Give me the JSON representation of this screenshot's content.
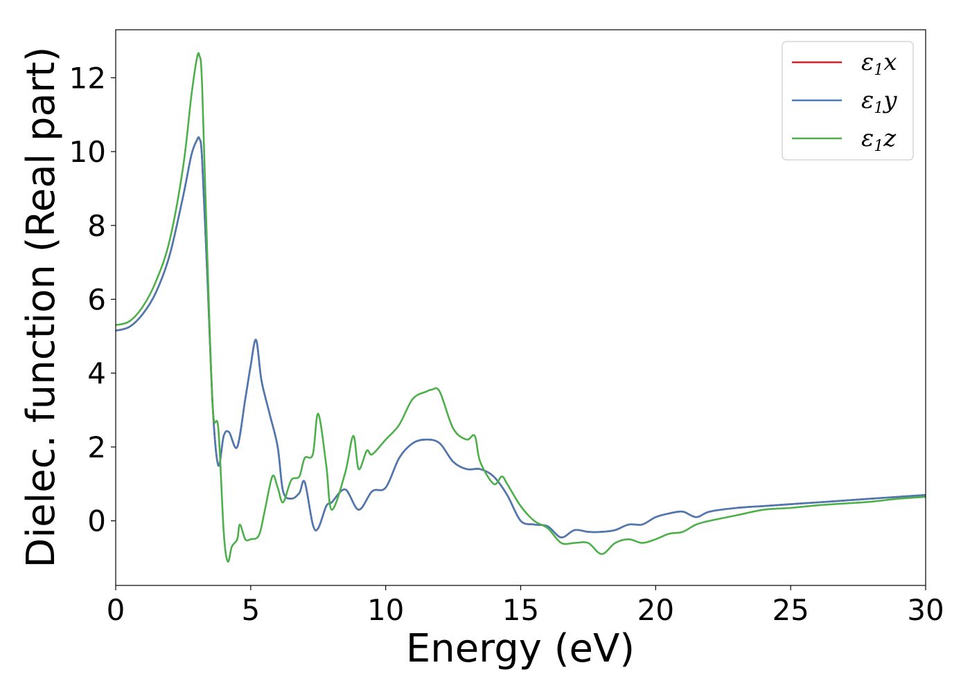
{
  "chart_data": {
    "type": "line",
    "title": "",
    "xlabel": "Energy (eV)",
    "ylabel": "Dielec. function (Real part)",
    "xlim": [
      0,
      30
    ],
    "ylim": [
      -1.75,
      13.3
    ],
    "xticks": [
      "0",
      "5",
      "10",
      "15",
      "20",
      "25",
      "30"
    ],
    "yticks": [
      "0",
      "2",
      "4",
      "6",
      "8",
      "10",
      "12"
    ],
    "grid": false,
    "legend_position": "top-right",
    "series": [
      {
        "name": "ε1x",
        "legend_base": "ε",
        "legend_sub": "1",
        "legend_var": "x",
        "color": "#e41a1c",
        "x": [
          0,
          0.5,
          1,
          1.5,
          2,
          2.5,
          2.8,
          3.0,
          3.1,
          3.2,
          3.4,
          3.6,
          3.8,
          4.0,
          4.2,
          4.5,
          4.8,
          5.0,
          5.2,
          5.4,
          5.7,
          6.0,
          6.2,
          6.5,
          6.8,
          7.0,
          7.3,
          7.5,
          7.8,
          8.0,
          8.5,
          9.0,
          9.5,
          10.0,
          10.5,
          11.0,
          11.5,
          12.0,
          12.5,
          13.0,
          13.5,
          14.0,
          14.5,
          15.0,
          15.5,
          16.0,
          16.5,
          17.0,
          17.5,
          18.0,
          18.5,
          19.0,
          19.5,
          20.0,
          20.5,
          21.0,
          21.5,
          22.0,
          23.0,
          24.0,
          25.0,
          26.0,
          27.0,
          28.0,
          29.0,
          30.0
        ],
        "y": [
          5.15,
          5.25,
          5.6,
          6.2,
          7.2,
          8.8,
          9.9,
          10.3,
          10.35,
          9.8,
          6.5,
          3.0,
          1.5,
          2.3,
          2.4,
          2.0,
          3.3,
          4.2,
          4.9,
          3.8,
          2.9,
          2.0,
          0.8,
          0.6,
          0.75,
          1.05,
          -0.1,
          -0.2,
          0.4,
          0.5,
          0.85,
          0.3,
          0.8,
          0.9,
          1.7,
          2.1,
          2.2,
          2.1,
          1.6,
          1.4,
          1.4,
          1.2,
          0.7,
          0.0,
          -0.1,
          -0.15,
          -0.45,
          -0.25,
          -0.3,
          -0.3,
          -0.25,
          -0.1,
          -0.1,
          0.1,
          0.2,
          0.25,
          0.1,
          0.25,
          0.35,
          0.4,
          0.45,
          0.5,
          0.55,
          0.6,
          0.65,
          0.7
        ]
      },
      {
        "name": "ε1y",
        "legend_base": "ε",
        "legend_sub": "1",
        "legend_var": "y",
        "color": "#4a7ab3",
        "x": [
          0,
          0.5,
          1,
          1.5,
          2,
          2.5,
          2.8,
          3.0,
          3.1,
          3.2,
          3.4,
          3.6,
          3.8,
          4.0,
          4.2,
          4.5,
          4.8,
          5.0,
          5.2,
          5.4,
          5.7,
          6.0,
          6.2,
          6.5,
          6.8,
          7.0,
          7.3,
          7.5,
          7.8,
          8.0,
          8.5,
          9.0,
          9.5,
          10.0,
          10.5,
          11.0,
          11.5,
          12.0,
          12.5,
          13.0,
          13.5,
          14.0,
          14.5,
          15.0,
          15.5,
          16.0,
          16.5,
          17.0,
          17.5,
          18.0,
          18.5,
          19.0,
          19.5,
          20.0,
          20.5,
          21.0,
          21.5,
          22.0,
          23.0,
          24.0,
          25.0,
          26.0,
          27.0,
          28.0,
          29.0,
          30.0
        ],
        "y": [
          5.15,
          5.25,
          5.6,
          6.2,
          7.2,
          8.8,
          9.9,
          10.3,
          10.35,
          9.8,
          6.5,
          3.0,
          1.5,
          2.3,
          2.4,
          2.0,
          3.3,
          4.2,
          4.9,
          3.8,
          2.9,
          2.0,
          0.8,
          0.6,
          0.75,
          1.05,
          -0.1,
          -0.2,
          0.4,
          0.5,
          0.85,
          0.3,
          0.8,
          0.9,
          1.7,
          2.1,
          2.2,
          2.1,
          1.6,
          1.4,
          1.4,
          1.2,
          0.7,
          0.0,
          -0.1,
          -0.15,
          -0.45,
          -0.25,
          -0.3,
          -0.3,
          -0.25,
          -0.1,
          -0.1,
          0.1,
          0.2,
          0.25,
          0.1,
          0.25,
          0.35,
          0.4,
          0.45,
          0.5,
          0.55,
          0.6,
          0.65,
          0.7
        ]
      },
      {
        "name": "ε1z",
        "legend_base": "ε",
        "legend_sub": "1",
        "legend_var": "z",
        "color": "#4daf4a",
        "x": [
          0,
          0.5,
          1,
          1.5,
          2,
          2.5,
          2.8,
          3.0,
          3.1,
          3.2,
          3.4,
          3.6,
          3.8,
          4.0,
          4.15,
          4.3,
          4.5,
          4.6,
          4.8,
          5.0,
          5.3,
          5.5,
          5.8,
          6.0,
          6.2,
          6.5,
          6.8,
          7.0,
          7.3,
          7.5,
          7.8,
          8.0,
          8.5,
          8.8,
          9.0,
          9.3,
          9.5,
          10.0,
          10.5,
          11.0,
          11.5,
          11.7,
          12.0,
          12.5,
          13.0,
          13.3,
          13.5,
          14.0,
          14.3,
          14.5,
          15.0,
          15.5,
          16.0,
          16.5,
          17.0,
          17.5,
          18.0,
          18.5,
          19.0,
          19.5,
          20.0,
          20.5,
          21.0,
          21.5,
          22.0,
          23.0,
          24.0,
          25.0,
          26.0,
          27.0,
          28.0,
          29.0,
          30.0
        ],
        "y": [
          5.3,
          5.4,
          5.8,
          6.5,
          7.6,
          9.6,
          11.5,
          12.5,
          12.6,
          11.8,
          7.0,
          3.0,
          2.5,
          -0.3,
          -1.1,
          -0.7,
          -0.5,
          -0.1,
          -0.5,
          -0.5,
          -0.4,
          0.2,
          1.2,
          0.9,
          0.5,
          1.1,
          1.2,
          1.7,
          1.8,
          2.9,
          1.5,
          0.3,
          1.3,
          2.3,
          1.4,
          1.9,
          1.8,
          2.2,
          2.6,
          3.3,
          3.5,
          3.55,
          3.5,
          2.5,
          2.2,
          2.3,
          1.6,
          1.0,
          1.2,
          1.0,
          0.4,
          0.0,
          -0.2,
          -0.6,
          -0.6,
          -0.6,
          -0.9,
          -0.6,
          -0.5,
          -0.6,
          -0.5,
          -0.35,
          -0.3,
          -0.1,
          0.0,
          0.15,
          0.3,
          0.35,
          0.42,
          0.47,
          0.52,
          0.6,
          0.65
        ]
      }
    ]
  }
}
